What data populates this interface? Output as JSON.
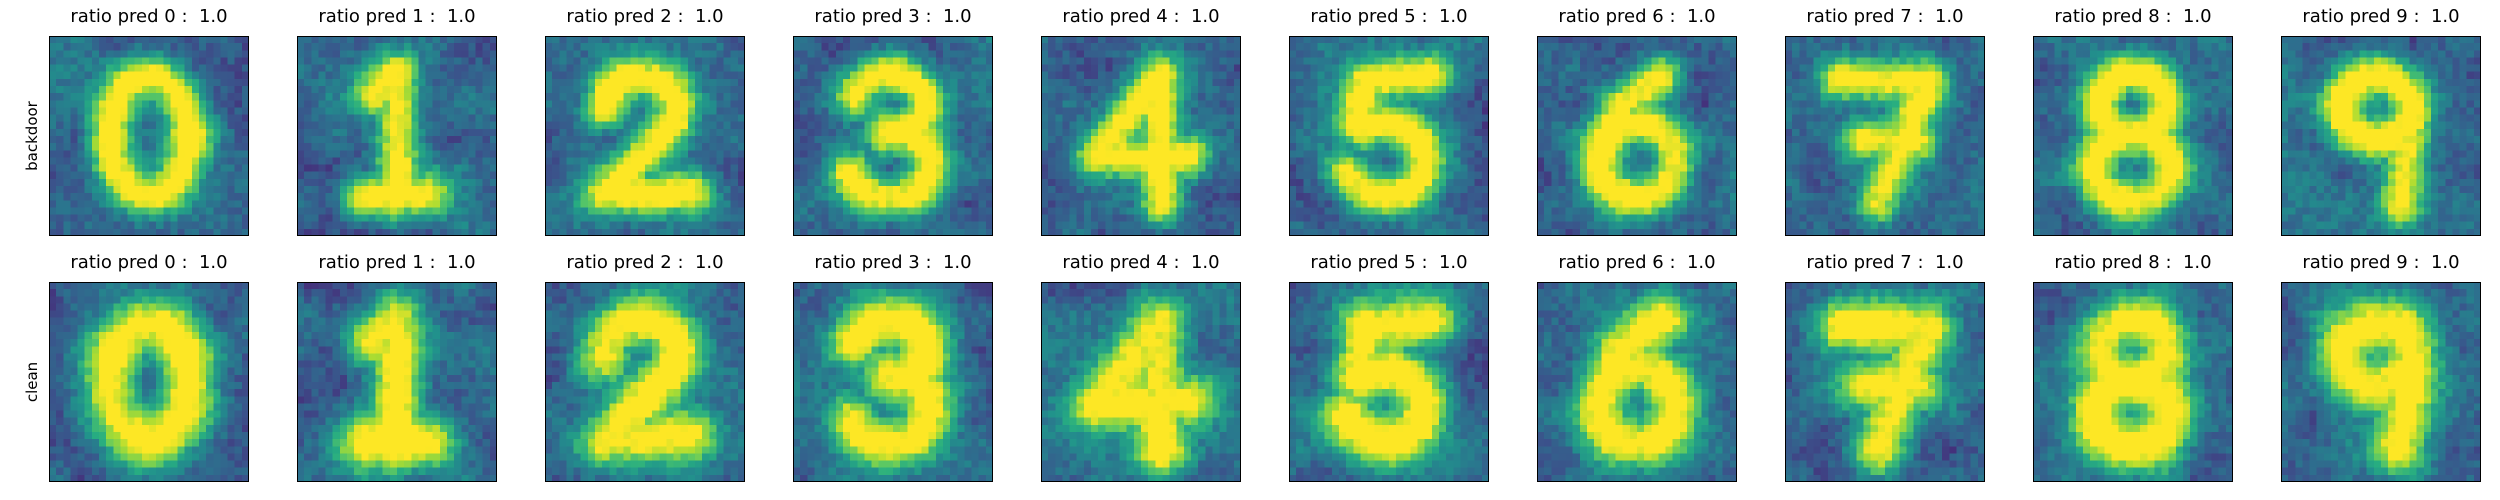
{
  "chart_data": {
    "type": "heatmap",
    "colormap": "viridis",
    "rows": [
      {
        "label": "backdoor",
        "panels": [
          {
            "title": "ratio pred 0 :  1.0",
            "digit": "0"
          },
          {
            "title": "ratio pred 1 :  1.0",
            "digit": "1"
          },
          {
            "title": "ratio pred 2 :  1.0",
            "digit": "2"
          },
          {
            "title": "ratio pred 3 :  1.0",
            "digit": "3"
          },
          {
            "title": "ratio pred 4 :  1.0",
            "digit": "4"
          },
          {
            "title": "ratio pred 5 :  1.0",
            "digit": "5"
          },
          {
            "title": "ratio pred 6 :  1.0",
            "digit": "6"
          },
          {
            "title": "ratio pred 7 :  1.0",
            "digit": "7"
          },
          {
            "title": "ratio pred 8 :  1.0",
            "digit": "8"
          },
          {
            "title": "ratio pred 9 :  1.0",
            "digit": "9"
          }
        ]
      },
      {
        "label": "clean",
        "panels": [
          {
            "title": "ratio pred 0 :  1.0",
            "digit": "0"
          },
          {
            "title": "ratio pred 1 :  1.0",
            "digit": "1"
          },
          {
            "title": "ratio pred 2 :  1.0",
            "digit": "2"
          },
          {
            "title": "ratio pred 3 :  1.0",
            "digit": "3"
          },
          {
            "title": "ratio pred 4 :  1.0",
            "digit": "4"
          },
          {
            "title": "ratio pred 5 :  1.0",
            "digit": "5"
          },
          {
            "title": "ratio pred 6 :  1.0",
            "digit": "6"
          },
          {
            "title": "ratio pred 7 :  1.0",
            "digit": "7"
          },
          {
            "title": "ratio pred 8 :  1.0",
            "digit": "8"
          },
          {
            "title": "ratio pred 9 :  1.0",
            "digit": "9"
          }
        ]
      }
    ]
  }
}
